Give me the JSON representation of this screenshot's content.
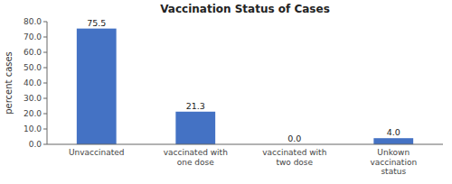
{
  "chart_data": {
    "type": "bar",
    "title": "Vaccination Status of Cases",
    "categories": [
      "Unvaccinated",
      "vaccinated with\none dose",
      "vaccinated with\ntwo dose",
      "Unkown\nvaccination\nstatus"
    ],
    "values": [
      75.5,
      21.3,
      0.0,
      4.0
    ],
    "value_labels": [
      "75.5",
      "21.3",
      "0.0",
      "4.0"
    ],
    "data_labels": true,
    "color": "#4472C4",
    "ylabel": "percent cases",
    "ylim": [
      0,
      80.0
    ],
    "yticks": [
      {
        "value": 0,
        "label": "0.0"
      },
      {
        "value": 10,
        "label": "10.0"
      },
      {
        "value": 20,
        "label": "20.0"
      },
      {
        "value": 30,
        "label": "30.0"
      },
      {
        "value": 40,
        "label": "40.0"
      },
      {
        "value": 50,
        "label": "50.0"
      },
      {
        "value": 60,
        "label": "60.0"
      },
      {
        "value": 70,
        "label": "70.0"
      },
      {
        "value": 80,
        "label": "80.0"
      }
    ],
    "grid": false
  }
}
